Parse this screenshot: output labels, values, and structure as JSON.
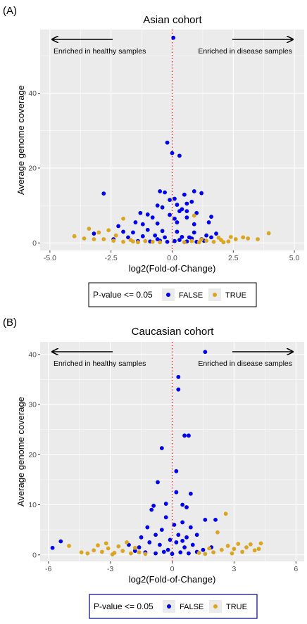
{
  "colors": {
    "false_points": "#0000ee",
    "true_points": "#daa520",
    "panel_background": "#ebebeb",
    "gridline": "#ffffff",
    "zero_line": "#ff0000",
    "axis_text": "#4d4d4d"
  },
  "chart_data": [
    {
      "type": "scatter",
      "panel_label": "(A)",
      "title": "Asian cohort",
      "xlabel": "log2(Fold-of-Change)",
      "ylabel": "Average genome coverage",
      "xlim": [
        -5.4,
        5.4
      ],
      "ylim": [
        -2,
        57
      ],
      "xticks": [
        -5,
        -2.5,
        0,
        2.5,
        5
      ],
      "xtick_labels": [
        "-5.0",
        "-2.5",
        "0.0",
        "2.5",
        "5.0"
      ],
      "yticks": [
        0,
        20,
        40
      ],
      "ytick_labels": [
        "0",
        "20",
        "40"
      ],
      "grid": true,
      "vline": {
        "x": 0,
        "style": "dotted"
      },
      "annotations": [
        {
          "text": "Enriched in healthy samples",
          "side": "left"
        },
        {
          "text": "Enriched in disease samples",
          "side": "right"
        }
      ],
      "legend": {
        "title": "P-value <= 0.05",
        "position": "bottom",
        "entries": [
          "FALSE",
          "TRUE"
        ]
      },
      "series": [
        {
          "name": "FALSE",
          "points": [
            [
              0.05,
              54.8
            ],
            [
              -0.2,
              26.8
            ],
            [
              0.0,
              24.0
            ],
            [
              0.3,
              23.3
            ],
            [
              -2.8,
              13.2
            ],
            [
              -0.5,
              13.8
            ],
            [
              -0.3,
              13.5
            ],
            [
              0.5,
              12.9
            ],
            [
              0.9,
              13.8
            ],
            [
              1.2,
              13.3
            ],
            [
              0.1,
              11.8
            ],
            [
              -0.1,
              11.5
            ],
            [
              0.2,
              10.2
            ],
            [
              0.6,
              10.5
            ],
            [
              0.8,
              11.0
            ],
            [
              0.4,
              9.0
            ],
            [
              0.3,
              8.5
            ],
            [
              -0.6,
              10.0
            ],
            [
              -0.4,
              9.5
            ],
            [
              -1.0,
              7.6
            ],
            [
              -1.3,
              8.0
            ],
            [
              -0.1,
              7.5
            ],
            [
              0.6,
              6.8
            ],
            [
              0.1,
              6.5
            ],
            [
              -0.8,
              6.8
            ],
            [
              0.6,
              8.5
            ],
            [
              1.0,
              8.0
            ],
            [
              1.6,
              7.0
            ],
            [
              -1.5,
              5.5
            ],
            [
              -1.2,
              5.0
            ],
            [
              -0.6,
              5.2
            ],
            [
              0.2,
              5.5
            ],
            [
              0.9,
              5.0
            ],
            [
              1.5,
              5.5
            ],
            [
              -2.2,
              4.5
            ],
            [
              -3.2,
              2.5
            ],
            [
              -2.0,
              3.0
            ],
            [
              -1.6,
              2.8
            ],
            [
              -1.0,
              3.5
            ],
            [
              -0.4,
              3.2
            ],
            [
              0.2,
              3.0
            ],
            [
              0.9,
              2.8
            ],
            [
              1.4,
              2.0
            ],
            [
              1.8,
              2.5
            ],
            [
              -2.4,
              1.0
            ],
            [
              -1.8,
              1.5
            ],
            [
              -1.2,
              1.8
            ],
            [
              -0.7,
              2.0
            ],
            [
              -0.3,
              1.5
            ],
            [
              0.4,
              1.6
            ],
            [
              0.8,
              1.2
            ],
            [
              1.2,
              1.0
            ],
            [
              1.6,
              1.5
            ],
            [
              -1.4,
              0.5
            ],
            [
              -0.9,
              0.4
            ],
            [
              -0.5,
              0.6
            ],
            [
              -0.2,
              0.3
            ],
            [
              0.1,
              0.5
            ],
            [
              0.3,
              0.8
            ],
            [
              0.6,
              0.4
            ],
            [
              1.0,
              0.3
            ],
            [
              1.3,
              0.6
            ],
            [
              -0.6,
              1.0
            ],
            [
              0.7,
              1.5
            ]
          ]
        },
        {
          "name": "TRUE",
          "points": [
            [
              3.95,
              2.6
            ],
            [
              -4.0,
              1.8
            ],
            [
              3.5,
              1.0
            ],
            [
              -3.6,
              1.2
            ],
            [
              -3.4,
              3.8
            ],
            [
              -3.0,
              2.8
            ],
            [
              -2.6,
              3.4
            ],
            [
              -2.3,
              2.0
            ],
            [
              -2.0,
              6.5
            ],
            [
              -2.8,
              1.0
            ],
            [
              -2.4,
              0.6
            ],
            [
              -2.0,
              0.3
            ],
            [
              -1.7,
              0.8
            ],
            [
              -1.4,
              0.2
            ],
            [
              -1.1,
              0.5
            ],
            [
              -0.8,
              0.3
            ],
            [
              -0.5,
              0.2
            ],
            [
              0.5,
              0.2
            ],
            [
              0.8,
              0.5
            ],
            [
              1.1,
              0.2
            ],
            [
              1.4,
              0.6
            ],
            [
              1.7,
              0.3
            ],
            [
              2.0,
              0.8
            ],
            [
              2.3,
              0.4
            ],
            [
              2.6,
              1.0
            ],
            [
              2.9,
              1.5
            ],
            [
              3.1,
              1.2
            ],
            [
              2.4,
              1.6
            ],
            [
              1.9,
              1.4
            ],
            [
              -3.2,
              1.0
            ],
            [
              0.9,
              7.3
            ],
            [
              1.2,
              0.9
            ],
            [
              -1.6,
              0.4
            ],
            [
              2.1,
              0.2
            ]
          ]
        }
      ]
    },
    {
      "type": "scatter",
      "panel_label": "(B)",
      "title": "Caucasian cohort",
      "xlabel": "log2(Fold-of-Change)",
      "ylabel": "Average genome coverage",
      "xlim": [
        -6.4,
        6.4
      ],
      "ylim": [
        -1.3,
        42.5
      ],
      "xticks": [
        -6,
        -3,
        0,
        3,
        6
      ],
      "xtick_labels": [
        "-6",
        "-3",
        "0",
        "3",
        "6"
      ],
      "yticks": [
        0,
        10,
        20,
        30,
        40
      ],
      "ytick_labels": [
        "0",
        "10",
        "20",
        "30",
        "40"
      ],
      "grid": true,
      "vline": {
        "x": 0,
        "style": "dotted"
      },
      "annotations": [
        {
          "text": "Enriched in healthy samples",
          "side": "left"
        },
        {
          "text": "Enriched in disease samples",
          "side": "right"
        }
      ],
      "legend": {
        "title": "P-value <= 0.05",
        "position": "bottom",
        "entries": [
          "FALSE",
          "TRUE"
        ]
      },
      "series": [
        {
          "name": "FALSE",
          "points": [
            [
              1.6,
              40.5
            ],
            [
              0.3,
              35.5
            ],
            [
              0.3,
              33.0
            ],
            [
              0.6,
              23.8
            ],
            [
              0.8,
              23.8
            ],
            [
              -0.5,
              21.3
            ],
            [
              0.2,
              16.7
            ],
            [
              -0.7,
              14.5
            ],
            [
              0.2,
              12.5
            ],
            [
              0.9,
              12.2
            ],
            [
              0.5,
              10.0
            ],
            [
              -0.3,
              10.2
            ],
            [
              -0.9,
              9.8
            ],
            [
              -1.0,
              9.0
            ],
            [
              0.7,
              9.5
            ],
            [
              1.6,
              7.0
            ],
            [
              2.1,
              7.0
            ],
            [
              -0.3,
              7.5
            ],
            [
              0.1,
              6.0
            ],
            [
              0.5,
              6.5
            ],
            [
              -0.5,
              5.0
            ],
            [
              -1.2,
              5.5
            ],
            [
              0.9,
              5.5
            ],
            [
              -1.5,
              3.5
            ],
            [
              -0.8,
              4.0
            ],
            [
              0.3,
              4.0
            ],
            [
              0.7,
              3.5
            ],
            [
              1.2,
              4.0
            ],
            [
              -5.8,
              1.4
            ],
            [
              -5.4,
              2.7
            ],
            [
              -2.1,
              2.0
            ],
            [
              -1.6,
              1.5
            ],
            [
              -1.1,
              2.5
            ],
            [
              -0.6,
              2.0
            ],
            [
              -0.2,
              1.0
            ],
            [
              0.2,
              2.5
            ],
            [
              0.6,
              1.5
            ],
            [
              1.0,
              2.0
            ],
            [
              1.5,
              1.0
            ],
            [
              1.9,
              1.5
            ],
            [
              -1.3,
              0.5
            ],
            [
              -0.8,
              0.3
            ],
            [
              -0.4,
              0.6
            ],
            [
              0.0,
              0.2
            ],
            [
              0.4,
              0.5
            ],
            [
              0.8,
              0.3
            ],
            [
              1.2,
              0.6
            ],
            [
              -0.1,
              3.0
            ],
            [
              0.5,
              2.8
            ],
            [
              -1.8,
              0.8
            ]
          ]
        },
        {
          "name": "TRUE",
          "points": [
            [
              -5.0,
              1.8
            ],
            [
              2.6,
              8.2
            ],
            [
              2.2,
              4.5
            ],
            [
              3.2,
              2.2
            ],
            [
              3.6,
              1.5
            ],
            [
              3.8,
              2.1
            ],
            [
              4.0,
              0.9
            ],
            [
              4.2,
              1.2
            ],
            [
              4.3,
              2.3
            ],
            [
              3.4,
              0.6
            ],
            [
              2.9,
              0.3
            ],
            [
              2.4,
              1.0
            ],
            [
              2.0,
              0.5
            ],
            [
              1.6,
              0.2
            ],
            [
              1.3,
              0.4
            ],
            [
              -1.3,
              0.2
            ],
            [
              -1.6,
              0.5
            ],
            [
              -2.0,
              0.3
            ],
            [
              -2.4,
              0.8
            ],
            [
              -2.8,
              0.4
            ],
            [
              -3.1,
              1.3
            ],
            [
              -3.4,
              0.6
            ],
            [
              -3.8,
              0.9
            ],
            [
              -4.1,
              0.3
            ],
            [
              -3.2,
              2.3
            ],
            [
              -2.6,
              1.7
            ],
            [
              -2.2,
              2.5
            ],
            [
              -1.8,
              1.4
            ],
            [
              -4.4,
              0.5
            ],
            [
              -3.6,
              1.9
            ],
            [
              2.7,
              1.8
            ],
            [
              3.0,
              1.2
            ],
            [
              -2.9,
              0.1
            ],
            [
              1.8,
              1.3
            ]
          ]
        }
      ]
    }
  ]
}
